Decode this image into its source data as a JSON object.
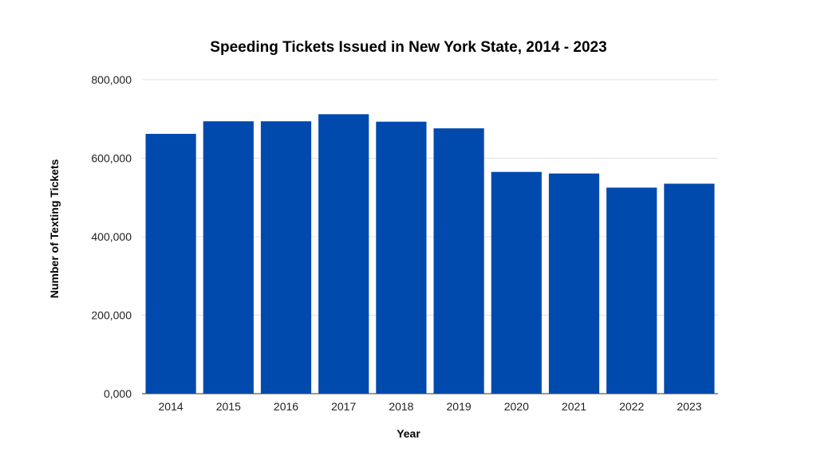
{
  "chart_data": {
    "type": "bar",
    "title": "Speeding Tickets Issued in New York State, 2014 - 2023",
    "xlabel": "Year",
    "ylabel": "Number of Texting Tickets",
    "categories": [
      "2014",
      "2015",
      "2016",
      "2017",
      "2018",
      "2019",
      "2020",
      "2021",
      "2022",
      "2023"
    ],
    "values": [
      662000,
      694000,
      694000,
      712000,
      693000,
      676000,
      565000,
      561000,
      525000,
      535000
    ],
    "ylim": [
      0,
      800000
    ],
    "yticks": [
      0,
      200000,
      400000,
      600000,
      800000
    ],
    "ytick_labels": [
      "0,000",
      "200,000",
      "400,000",
      "600,000",
      "800,000"
    ],
    "grid": true,
    "legend": "none",
    "bar_color": "#004aad"
  }
}
